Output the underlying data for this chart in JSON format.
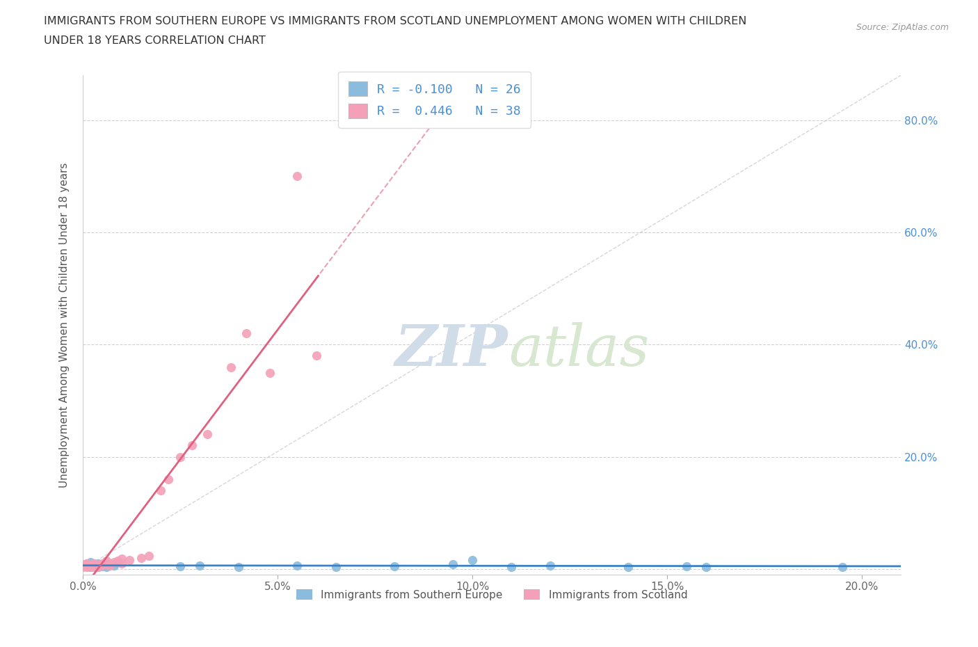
{
  "title_line1": "IMMIGRANTS FROM SOUTHERN EUROPE VS IMMIGRANTS FROM SCOTLAND UNEMPLOYMENT AMONG WOMEN WITH CHILDREN",
  "title_line2": "UNDER 18 YEARS CORRELATION CHART",
  "source": "Source: ZipAtlas.com",
  "ylabel": "Unemployment Among Women with Children Under 18 years",
  "xlim": [
    0.0,
    0.21
  ],
  "ylim": [
    -0.01,
    0.88
  ],
  "xticks": [
    0.0,
    0.05,
    0.1,
    0.15,
    0.2
  ],
  "yticks": [
    0.0,
    0.2,
    0.4,
    0.6,
    0.8
  ],
  "xticklabels": [
    "0.0%",
    "5.0%",
    "10.0%",
    "15.0%",
    "20.0%"
  ],
  "yticklabels": [
    "",
    "20.0%",
    "40.0%",
    "60.0%",
    "80.0%"
  ],
  "legend_r1": "R = -0.100",
  "legend_n1": "N = 26",
  "legend_r2": "R =  0.446",
  "legend_n2": "N = 38",
  "color_blue": "#8bbcde",
  "color_pink": "#f4a0b8",
  "color_line_blue": "#3a82c4",
  "color_line_pink": "#e06080",
  "watermark_zip": "ZIP",
  "watermark_atlas": "atlas",
  "blue_x": [
    0.001,
    0.001,
    0.002,
    0.002,
    0.002,
    0.003,
    0.003,
    0.004,
    0.004,
    0.005,
    0.006,
    0.008,
    0.025,
    0.03,
    0.04,
    0.055,
    0.065,
    0.08,
    0.095,
    0.1,
    0.11,
    0.12,
    0.14,
    0.155,
    0.16,
    0.195
  ],
  "blue_y": [
    0.005,
    0.01,
    0.004,
    0.008,
    0.012,
    0.004,
    0.006,
    0.004,
    0.01,
    0.005,
    0.004,
    0.006,
    0.005,
    0.006,
    0.004,
    0.006,
    0.004,
    0.005,
    0.008,
    0.016,
    0.004,
    0.006,
    0.004,
    0.005,
    0.004,
    0.004
  ],
  "pink_x": [
    0.0,
    0.0,
    0.001,
    0.001,
    0.001,
    0.001,
    0.002,
    0.002,
    0.002,
    0.003,
    0.003,
    0.003,
    0.003,
    0.004,
    0.004,
    0.005,
    0.005,
    0.006,
    0.006,
    0.007,
    0.007,
    0.008,
    0.009,
    0.01,
    0.01,
    0.012,
    0.015,
    0.017,
    0.02,
    0.022,
    0.025,
    0.028,
    0.032,
    0.038,
    0.042,
    0.048,
    0.055,
    0.06
  ],
  "pink_y": [
    0.004,
    0.008,
    0.004,
    0.005,
    0.006,
    0.01,
    0.004,
    0.006,
    0.008,
    0.004,
    0.006,
    0.008,
    0.01,
    0.004,
    0.008,
    0.006,
    0.01,
    0.008,
    0.015,
    0.006,
    0.01,
    0.012,
    0.015,
    0.01,
    0.018,
    0.016,
    0.02,
    0.024,
    0.14,
    0.16,
    0.2,
    0.22,
    0.24,
    0.36,
    0.42,
    0.35,
    0.7,
    0.38
  ]
}
